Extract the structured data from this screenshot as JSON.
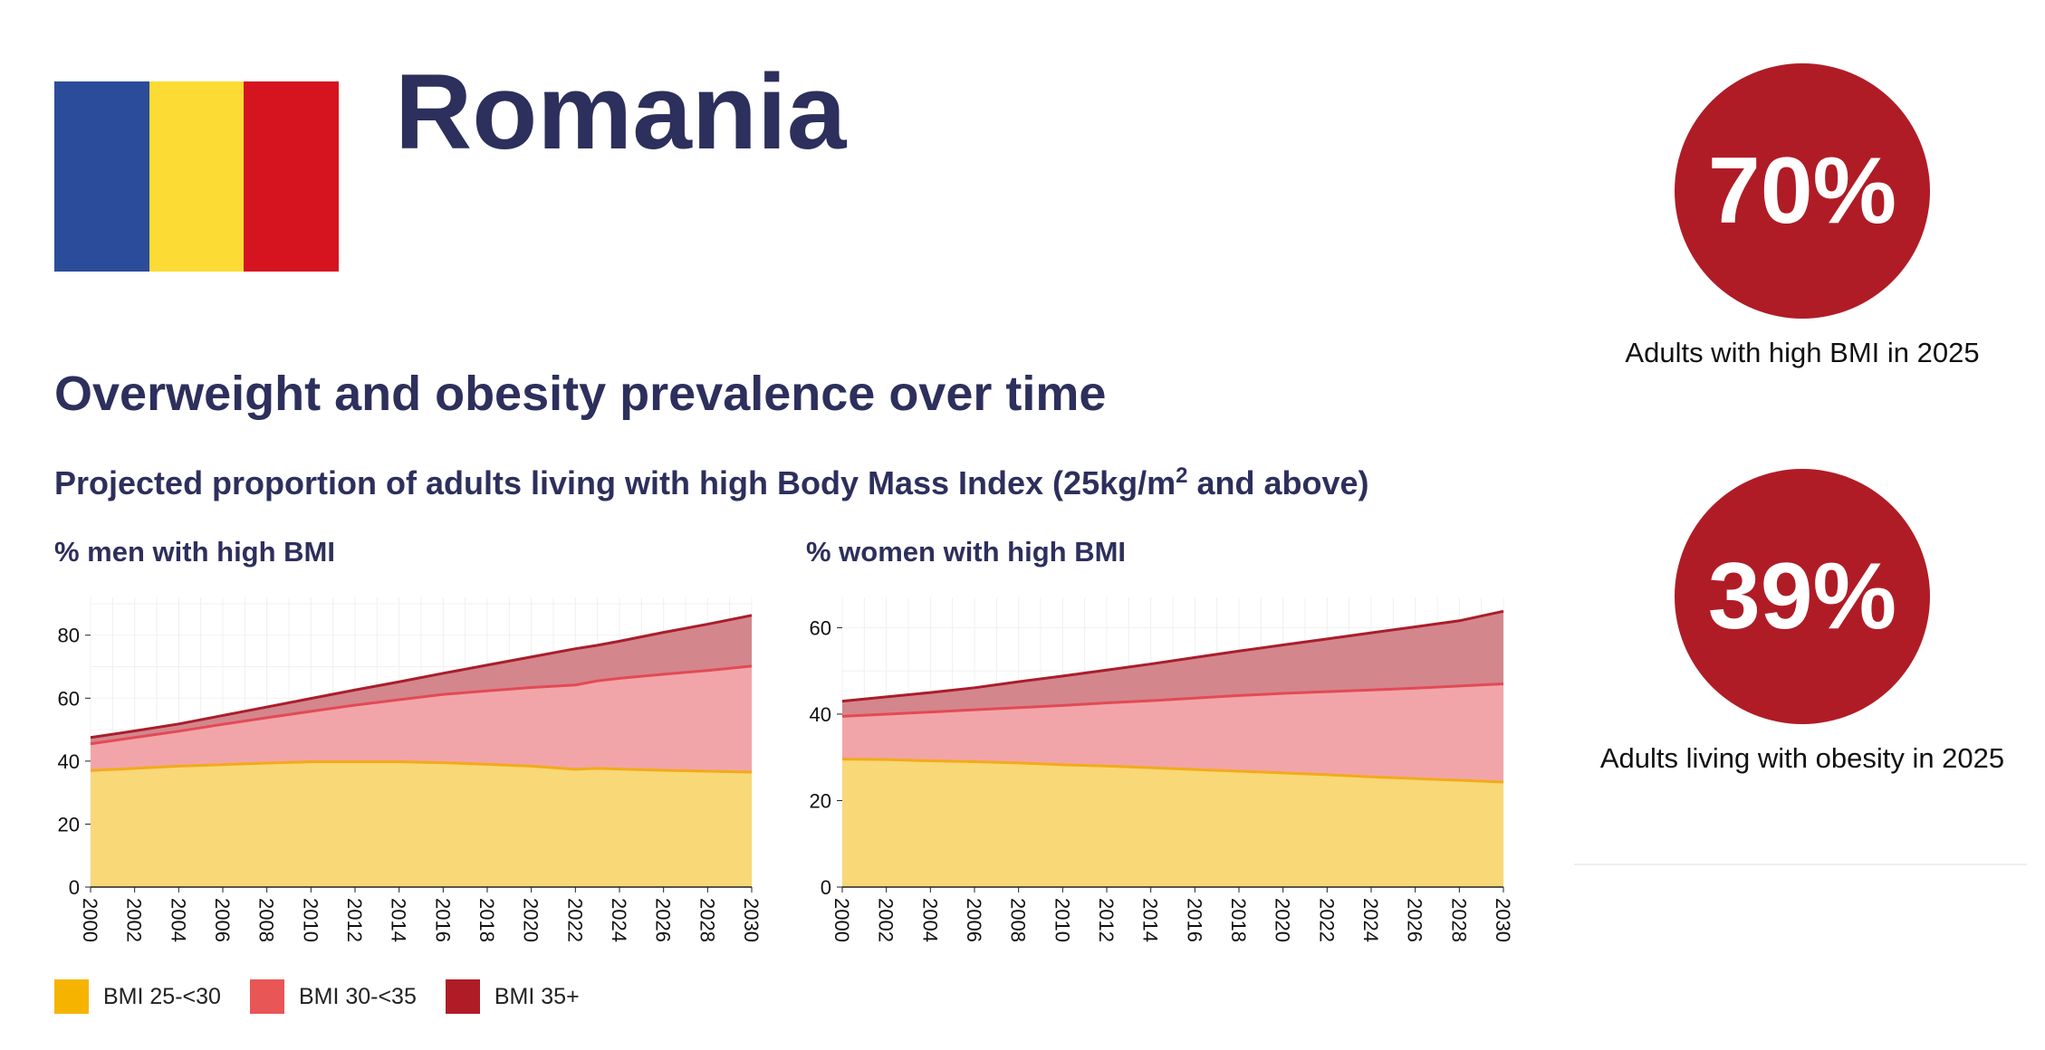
{
  "country": "Romania",
  "flag_colors": [
    "#2a4c9a",
    "#fddb35",
    "#d5141f"
  ],
  "section_title": "Overweight and obesity prevalence over time",
  "subtitle_main": "Projected proportion of adults living with high Body Mass Index (25kg/m",
  "subtitle_sup": "2",
  "subtitle_end": " and above)",
  "stats": [
    {
      "value": "70%",
      "caption": "Adults with high BMI in 2025"
    },
    {
      "value": "39%",
      "caption": "Adults living with obesity in 2025"
    }
  ],
  "legend": [
    {
      "label": "BMI 25-<30",
      "color": "#f6b400"
    },
    {
      "label": "BMI 30-<35",
      "color": "#e85656"
    },
    {
      "label": "BMI 35+",
      "color": "#b01c26"
    }
  ],
  "chart_data": [
    {
      "type": "area",
      "title": "% men with high BMI",
      "x": [
        2000,
        2002,
        2004,
        2006,
        2008,
        2010,
        2012,
        2014,
        2016,
        2018,
        2020,
        2022,
        2023,
        2024,
        2026,
        2028,
        2030
      ],
      "ylim": [
        0,
        92
      ],
      "yticks": [
        0,
        20,
        40,
        60,
        80
      ],
      "xticks": [
        2000,
        2002,
        2004,
        2006,
        2008,
        2010,
        2012,
        2014,
        2016,
        2018,
        2020,
        2022,
        2024,
        2026,
        2028,
        2030
      ],
      "series": [
        {
          "label": "BMI 25-<30",
          "values": [
            37,
            37.7,
            38.4,
            38.9,
            39.4,
            39.8,
            39.8,
            39.8,
            39.5,
            39,
            38.4,
            37.4,
            37.7,
            37.5,
            37.1,
            36.8,
            36.5
          ]
        },
        {
          "label": "BMI 30-<35",
          "values": [
            45.5,
            47.5,
            49.5,
            51.7,
            53.8,
            55.8,
            57.8,
            59.5,
            61.2,
            62.3,
            63.4,
            64.2,
            65.5,
            66.3,
            67.6,
            68.8,
            70.2
          ]
        },
        {
          "label": "BMI 35+",
          "values": [
            47.5,
            49.6,
            51.8,
            54.5,
            57.2,
            59.9,
            62.6,
            65.2,
            67.9,
            70.5,
            73.1,
            75.7,
            76.8,
            78.1,
            80.9,
            83.5,
            86.3
          ]
        }
      ]
    },
    {
      "type": "area",
      "title": "% women with high BMI",
      "x": [
        2000,
        2002,
        2004,
        2006,
        2008,
        2010,
        2012,
        2014,
        2016,
        2018,
        2020,
        2022,
        2024,
        2026,
        2028,
        2030
      ],
      "ylim": [
        0,
        67
      ],
      "yticks": [
        0,
        20,
        40,
        60
      ],
      "xticks": [
        2000,
        2002,
        2004,
        2006,
        2008,
        2010,
        2012,
        2014,
        2016,
        2018,
        2020,
        2022,
        2024,
        2026,
        2028,
        2030
      ],
      "series": [
        {
          "label": "BMI 25-<30",
          "values": [
            29.6,
            29.5,
            29.2,
            29,
            28.7,
            28.3,
            28,
            27.6,
            27.2,
            26.8,
            26.4,
            26,
            25.5,
            25.1,
            24.7,
            24.3
          ]
        },
        {
          "label": "BMI 30-<35",
          "values": [
            39.5,
            40,
            40.5,
            41,
            41.5,
            42,
            42.6,
            43.1,
            43.7,
            44.3,
            44.8,
            45.2,
            45.6,
            46,
            46.5,
            47
          ]
        },
        {
          "label": "BMI 35+",
          "values": [
            43,
            44,
            45,
            46.1,
            47.5,
            48.8,
            50.2,
            51.6,
            53.1,
            54.6,
            56,
            57.4,
            58.8,
            60.2,
            61.6,
            63.8
          ]
        }
      ]
    }
  ]
}
